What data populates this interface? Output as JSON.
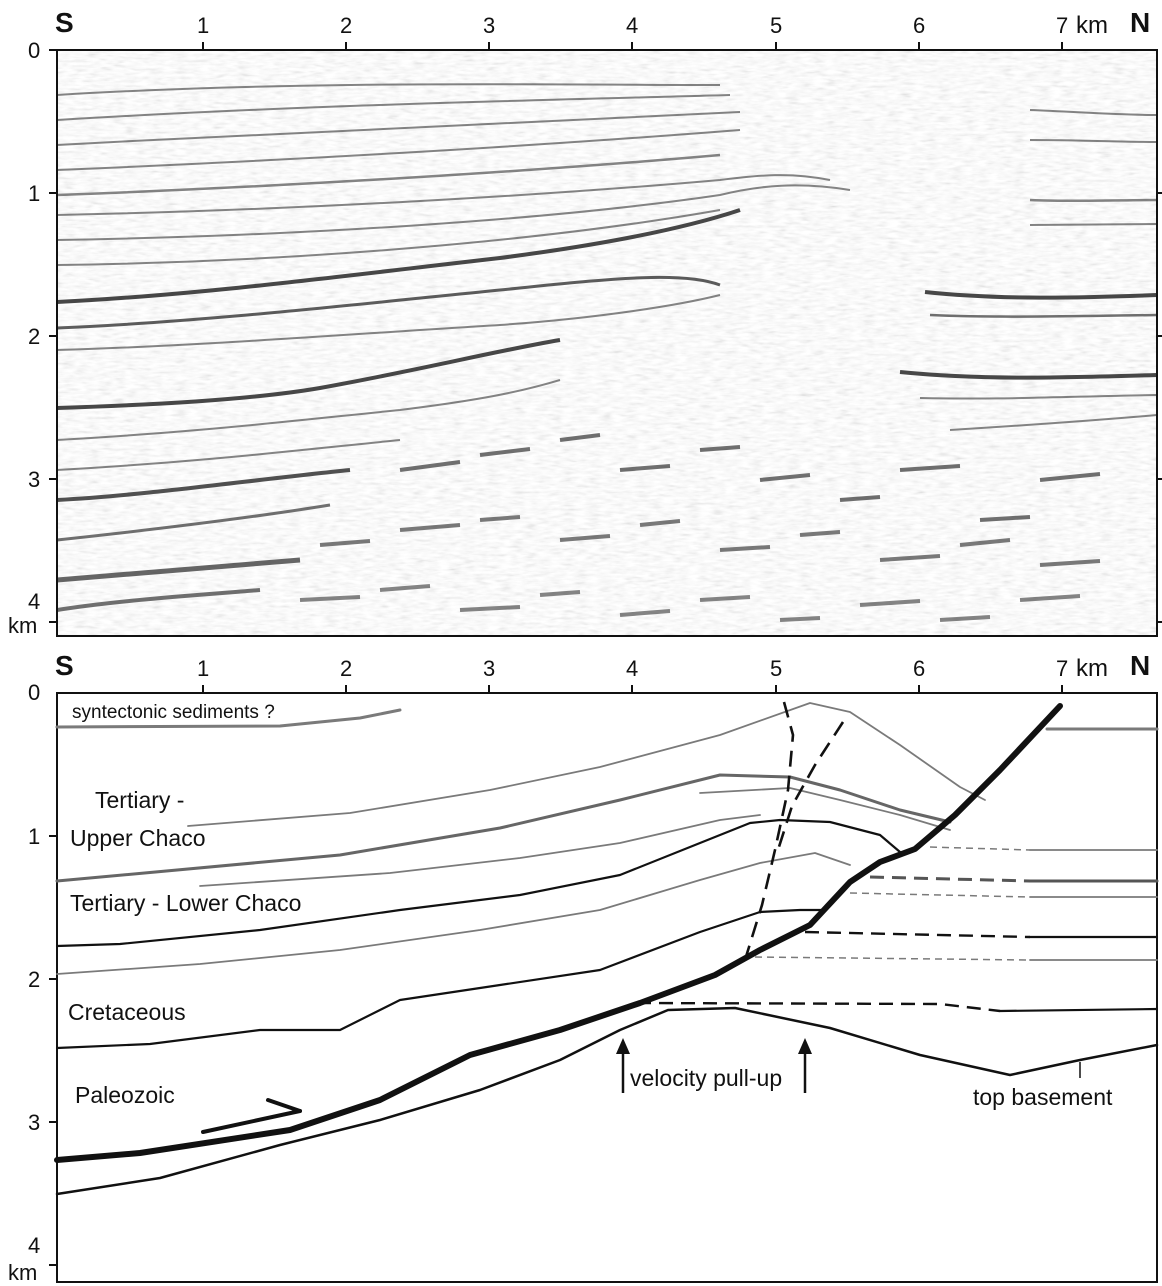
{
  "compass": {
    "south": "S",
    "north": "N"
  },
  "top_panel": {
    "x_ticks": [
      "1",
      "2",
      "3",
      "4",
      "5",
      "6",
      "7"
    ],
    "x_unit": "km",
    "y_ticks": [
      "0",
      "1",
      "2",
      "3",
      "4"
    ],
    "y_unit": "km"
  },
  "bottom_panel": {
    "x_ticks": [
      "1",
      "2",
      "3",
      "4",
      "5",
      "6",
      "7"
    ],
    "x_unit": "km",
    "y_ticks": [
      "0",
      "1",
      "2",
      "3",
      "4"
    ],
    "y_unit": "km",
    "labels": {
      "syntectonic": "syntectonic sediments ?",
      "tertiary_upper_1": "Tertiary -",
      "tertiary_upper_2": "Upper Chaco",
      "tertiary_lower": "Tertiary - Lower Chaco",
      "cretaceous": "Cretaceous",
      "paleozoic": "Paleozoic",
      "velocity_pullup": "velocity pull-up",
      "top_basement": "top basement"
    }
  },
  "colors": {
    "ink": "#111111",
    "gray_line": "#7a7a7a",
    "mid_line": "#555555"
  }
}
